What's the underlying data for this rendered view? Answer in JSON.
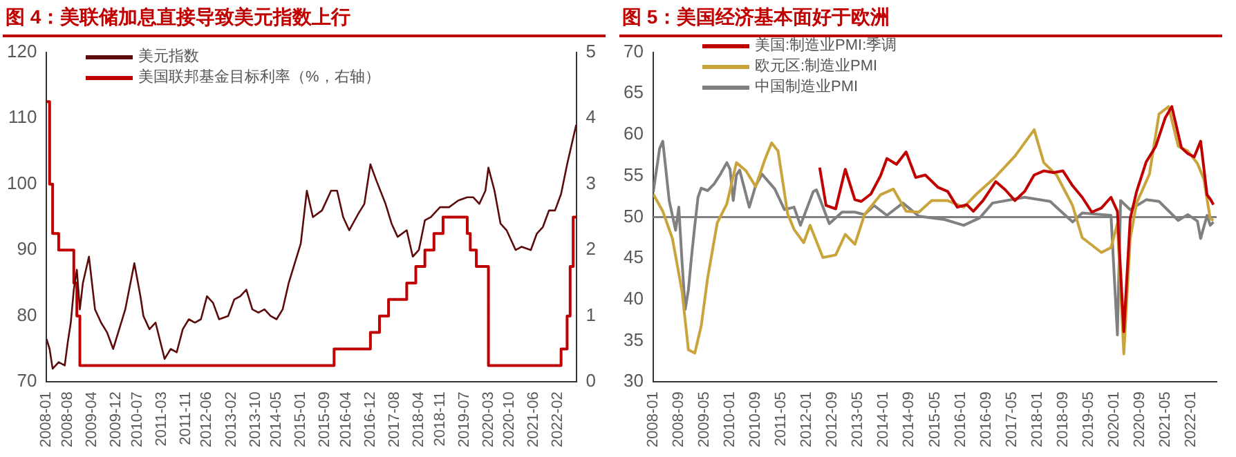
{
  "chart_data": [
    {
      "type": "line",
      "title": "图 4：美联储加息直接导致美元指数上行",
      "legend": "top",
      "grid": false,
      "xlim": [
        "2008-01",
        "2022-08"
      ],
      "xticks": [
        "2008-01",
        "2008-08",
        "2009-04",
        "2009-12",
        "2010-07",
        "2011-03",
        "2011-11",
        "2012-06",
        "2013-02",
        "2013-10",
        "2014-05",
        "2015-01",
        "2015-09",
        "2016-04",
        "2016-12",
        "2017-08",
        "2018-04",
        "2018-11",
        "2019-07",
        "2020-03",
        "2020-10",
        "2021-06",
        "2022-02"
      ],
      "ylim": [
        70,
        120
      ],
      "yticks": [
        70,
        80,
        90,
        100,
        110,
        120
      ],
      "y2lim": [
        0,
        5
      ],
      "y2ticks": [
        0,
        1,
        2,
        3,
        4,
        5
      ],
      "series": [
        {
          "name": "美元指数",
          "color": "#5c0a0a",
          "x": [
            "2008-01",
            "2008-02",
            "2008-03",
            "2008-04",
            "2008-05",
            "2008-07",
            "2008-08",
            "2008-09",
            "2008-10",
            "2008-11",
            "2008-12",
            "2009-01",
            "2009-03",
            "2009-05",
            "2009-07",
            "2009-09",
            "2009-11",
            "2010-01",
            "2010-03",
            "2010-06",
            "2010-08",
            "2010-09",
            "2010-11",
            "2011-01",
            "2011-04",
            "2011-06",
            "2011-08",
            "2011-10",
            "2011-12",
            "2012-02",
            "2012-04",
            "2012-06",
            "2012-08",
            "2012-10",
            "2013-01",
            "2013-03",
            "2013-05",
            "2013-07",
            "2013-09",
            "2013-11",
            "2014-01",
            "2014-03",
            "2014-05",
            "2014-07",
            "2014-09",
            "2014-11",
            "2015-01",
            "2015-03",
            "2015-05",
            "2015-08",
            "2015-11",
            "2016-01",
            "2016-03",
            "2016-05",
            "2016-08",
            "2016-10",
            "2016-12",
            "2017-02",
            "2017-05",
            "2017-07",
            "2017-09",
            "2017-12",
            "2018-02",
            "2018-04",
            "2018-06",
            "2018-08",
            "2018-11",
            "2019-02",
            "2019-05",
            "2019-08",
            "2019-10",
            "2019-12",
            "2020-02",
            "2020-03",
            "2020-05",
            "2020-07",
            "2020-09",
            "2020-12",
            "2021-02",
            "2021-05",
            "2021-07",
            "2021-09",
            "2021-11",
            "2022-01",
            "2022-03",
            "2022-05",
            "2022-06",
            "2022-07",
            "2022-08"
          ],
          "values": [
            76.5,
            75,
            72,
            72.5,
            73,
            72.5,
            76,
            79,
            84,
            87,
            81,
            85,
            89,
            81,
            79,
            77.5,
            75,
            78,
            81,
            88,
            83,
            80,
            78,
            79,
            73.5,
            75,
            74.5,
            78,
            79.5,
            79,
            79.5,
            83,
            82,
            79.5,
            80,
            82.5,
            83,
            84,
            81,
            80.5,
            81,
            80,
            79.5,
            81,
            85,
            88,
            91,
            99,
            95,
            96,
            99,
            99,
            95,
            93,
            95.5,
            97,
            103,
            100.5,
            97,
            94,
            92,
            93,
            89,
            90,
            94.5,
            95,
            96.5,
            96.5,
            97.5,
            98,
            98,
            97,
            99,
            102.5,
            99,
            94,
            93,
            90,
            90.5,
            90,
            92.5,
            93.5,
            96,
            96,
            98.5,
            103,
            105,
            107,
            109
          ]
        },
        {
          "name": "美国联邦基金目标利率（%，右轴）",
          "type": "step",
          "axis": "y2",
          "color": "#c00000",
          "x": [
            "2008-01",
            "2008-02",
            "2008-03",
            "2008-05",
            "2008-10",
            "2008-11",
            "2008-12",
            "2015-12",
            "2016-12",
            "2017-03",
            "2017-06",
            "2017-12",
            "2018-03",
            "2018-06",
            "2018-09",
            "2018-12",
            "2019-08",
            "2019-09",
            "2019-11",
            "2020-03",
            "2022-03",
            "2022-05",
            "2022-06",
            "2022-07",
            "2022-08"
          ],
          "values": [
            4.25,
            3,
            2.25,
            2,
            1.5,
            1,
            0.25,
            0.5,
            0.75,
            1,
            1.25,
            1.5,
            1.75,
            2,
            2.25,
            2.5,
            2.25,
            2,
            1.75,
            0.25,
            0.5,
            1,
            1.75,
            2.5,
            2.5
          ]
        }
      ]
    },
    {
      "type": "line",
      "title": "图 5：美国经济基本面好于欧洲",
      "legend": "top left",
      "grid": false,
      "xlim": [
        "2008-01",
        "2022-09"
      ],
      "xticks": [
        "2008-01",
        "2008-09",
        "2009-05",
        "2010-01",
        "2010-09",
        "2011-05",
        "2012-01",
        "2012-09",
        "2013-05",
        "2014-01",
        "2014-09",
        "2015-05",
        "2016-01",
        "2016-09",
        "2017-05",
        "2018-01",
        "2018-09",
        "2019-05",
        "2020-01",
        "2020-09",
        "2021-05",
        "2022-01"
      ],
      "ylim": [
        30,
        70
      ],
      "yticks": [
        30,
        35,
        40,
        45,
        50,
        55,
        60,
        65,
        70
      ],
      "ref_lines": [
        {
          "axis": "y",
          "value": 50,
          "color": "#808080"
        }
      ],
      "series": [
        {
          "name": "美国:制造业PMI:季调",
          "color": "#c00000",
          "x": [
            "2012-05",
            "2012-07",
            "2012-10",
            "2013-01",
            "2013-04",
            "2013-06",
            "2013-09",
            "2013-12",
            "2014-02",
            "2014-05",
            "2014-08",
            "2014-11",
            "2015-02",
            "2015-06",
            "2015-09",
            "2015-12",
            "2016-03",
            "2016-05",
            "2016-08",
            "2016-12",
            "2017-03",
            "2017-06",
            "2017-09",
            "2017-12",
            "2018-03",
            "2018-06",
            "2018-09",
            "2018-12",
            "2019-03",
            "2019-06",
            "2019-09",
            "2019-12",
            "2020-02",
            "2020-04",
            "2020-06",
            "2020-08",
            "2020-11",
            "2021-02",
            "2021-05",
            "2021-07",
            "2021-10",
            "2021-12",
            "2022-02",
            "2022-04",
            "2022-06",
            "2022-07",
            "2022-08"
          ],
          "values": [
            56,
            51.4,
            51,
            55.8,
            52.1,
            51.9,
            52.8,
            55,
            57.1,
            56.4,
            57.9,
            54.8,
            55.1,
            53.6,
            53.1,
            51.2,
            51.5,
            50.7,
            52,
            54.3,
            53.3,
            52,
            53.1,
            55.1,
            55.6,
            55.4,
            55.6,
            53.8,
            52.4,
            50.6,
            51.1,
            52.4,
            50.7,
            36.1,
            49.8,
            53.1,
            56.7,
            58.6,
            62.1,
            63.4,
            58.4,
            57.7,
            57.3,
            59.2,
            52.7,
            52.2,
            51.5
          ]
        },
        {
          "name": "欧元区:制造业PMI",
          "color": "#c9a43b",
          "x": [
            "2008-01",
            "2008-04",
            "2008-07",
            "2008-10",
            "2008-12",
            "2009-02",
            "2009-04",
            "2009-06",
            "2009-09",
            "2009-12",
            "2010-03",
            "2010-06",
            "2010-09",
            "2010-12",
            "2011-02",
            "2011-04",
            "2011-07",
            "2011-09",
            "2011-12",
            "2012-02",
            "2012-06",
            "2012-10",
            "2013-01",
            "2013-04",
            "2013-07",
            "2013-12",
            "2014-04",
            "2014-08",
            "2014-12",
            "2015-04",
            "2015-09",
            "2016-02",
            "2016-06",
            "2016-12",
            "2017-06",
            "2017-12",
            "2018-03",
            "2018-07",
            "2018-12",
            "2019-03",
            "2019-09",
            "2019-12",
            "2020-02",
            "2020-04",
            "2020-06",
            "2020-08",
            "2020-12",
            "2021-03",
            "2021-06",
            "2021-09",
            "2021-12",
            "2022-03",
            "2022-05",
            "2022-07",
            "2022-08"
          ],
          "values": [
            52.8,
            50.7,
            47.4,
            41,
            33.9,
            33.5,
            36.8,
            42.6,
            49.3,
            51.6,
            56.6,
            55.6,
            53.7,
            57.1,
            59,
            58,
            50.4,
            48.5,
            46.9,
            49,
            45.1,
            45.4,
            47.9,
            46.7,
            50.3,
            52.7,
            53.4,
            50.7,
            50.6,
            52,
            52,
            51.2,
            52.8,
            54.9,
            57.4,
            60.6,
            56.6,
            55.1,
            51.4,
            47.5,
            45.7,
            46.3,
            49.2,
            33.4,
            47.4,
            51.7,
            55.2,
            62.5,
            63.4,
            58.6,
            58,
            56.5,
            54.6,
            49.8,
            49.6
          ]
        },
        {
          "name": "中国制造业PMI",
          "color": "#808080",
          "x": [
            "2008-01",
            "2008-03",
            "2008-04",
            "2008-06",
            "2008-08",
            "2008-09",
            "2008-10",
            "2008-11",
            "2008-12",
            "2009-01",
            "2009-02",
            "2009-03",
            "2009-04",
            "2009-06",
            "2009-08",
            "2009-10",
            "2009-12",
            "2010-01",
            "2010-02",
            "2010-03",
            "2010-04",
            "2010-07",
            "2010-09",
            "2010-11",
            "2011-03",
            "2011-06",
            "2011-09",
            "2011-11",
            "2012-03",
            "2012-04",
            "2012-08",
            "2012-12",
            "2013-04",
            "2013-07",
            "2013-10",
            "2014-02",
            "2014-07",
            "2014-12",
            "2015-08",
            "2016-02",
            "2016-07",
            "2016-11",
            "2017-09",
            "2018-05",
            "2018-12",
            "2019-03",
            "2019-12",
            "2020-02",
            "2020-03",
            "2020-06",
            "2020-11",
            "2021-03",
            "2021-09",
            "2021-12",
            "2022-03",
            "2022-04",
            "2022-06",
            "2022-07",
            "2022-08"
          ],
          "values": [
            53,
            58.3,
            59.2,
            52,
            48.4,
            51.2,
            44.6,
            38.8,
            41.2,
            45.3,
            49,
            52.4,
            53.5,
            53.2,
            54,
            55.2,
            56.6,
            55.8,
            52,
            55.1,
            55.7,
            51.2,
            53.8,
            55.2,
            53.4,
            50.9,
            51.2,
            49,
            53.1,
            53.3,
            49.2,
            50.6,
            50.6,
            50.3,
            51.4,
            50.2,
            51.7,
            50.1,
            49.7,
            49,
            49.9,
            51.7,
            52.4,
            51.9,
            49.4,
            50.5,
            50.2,
            35.7,
            52,
            50.9,
            52.1,
            51.9,
            49.6,
            50.3,
            49.5,
            47.4,
            50.2,
            49,
            49.4
          ]
        }
      ]
    }
  ]
}
